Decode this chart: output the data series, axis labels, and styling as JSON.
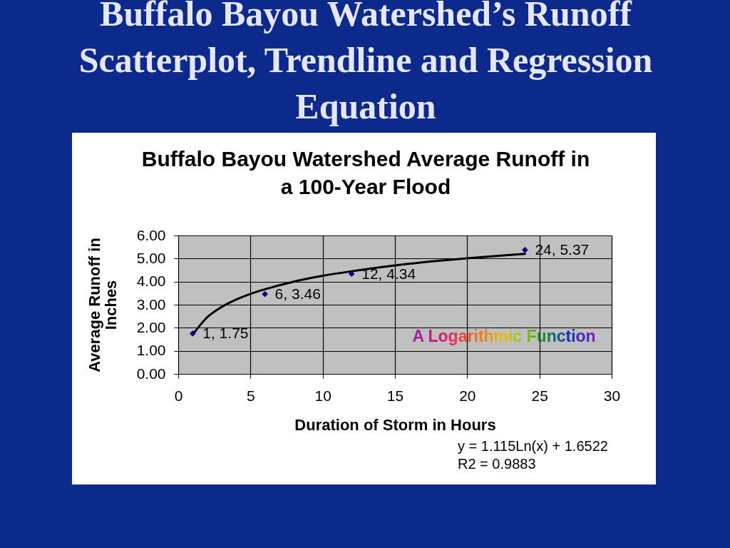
{
  "chart_data": {
    "type": "scatter",
    "title": "Buffalo Bayou Watershed’s Runoff Scatterplot, Trendline and Regression Equation",
    "subtitle": "Buffalo Bayou Watershed Average Runoff in a 100-Year Flood",
    "xlabel": "Duration of Storm in Hours",
    "ylabel": "Average Runoff in Inches",
    "x": [
      1,
      6,
      12,
      24
    ],
    "series": [
      {
        "type": "line",
        "color": "#000000",
        "marker": "none",
        "line_style": "solid",
        "x": [
          1,
          2,
          3,
          4,
          5,
          6,
          8,
          10,
          12,
          15,
          18,
          20,
          22,
          24
        ],
        "values": [
          1.7,
          2.45,
          2.9,
          3.22,
          3.47,
          3.67,
          4.0,
          4.25,
          4.45,
          4.7,
          4.9,
          5.01,
          5.11,
          5.2
        ]
      },
      {
        "color": "#000080",
        "marker": "diamond",
        "values": [
          1.75,
          3.46,
          4.34,
          5.37
        ],
        "value_labels": [
          "1, 1.75",
          "6, 3.46",
          "12, 4.34",
          "24, 5.37"
        ]
      }
    ],
    "xlim": [
      0,
      30
    ],
    "xticks": [
      0,
      5,
      10,
      15,
      20,
      25,
      30
    ],
    "ylim": [
      0,
      6
    ],
    "yticks": [
      {
        "value": 0,
        "label": "0.00"
      },
      {
        "value": 1,
        "label": "1.00"
      },
      {
        "value": 2,
        "label": "2.00"
      },
      {
        "value": 3,
        "label": "3.00"
      },
      {
        "value": 4,
        "label": "4.00"
      },
      {
        "value": 5,
        "label": "5.00"
      },
      {
        "value": 6,
        "label": "6.00"
      }
    ],
    "grid": true,
    "annotations": [
      "A Logarithmic Function",
      "y = 1.115Ln(x) + 1.6522",
      "R2 = 0.9883"
    ]
  }
}
